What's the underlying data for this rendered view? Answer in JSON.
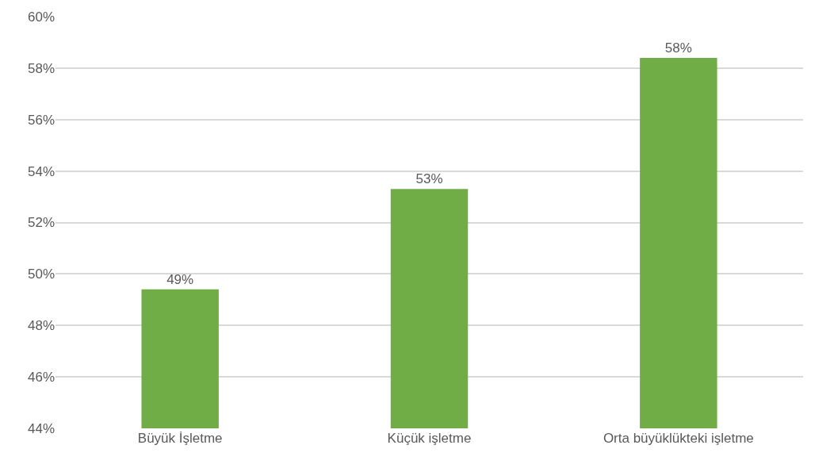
{
  "chart_data": {
    "type": "bar",
    "categories": [
      "Büyük İşletme",
      "Küçük işletme",
      "Orta büyüklükteki işletme"
    ],
    "values": [
      49.4,
      53.3,
      58.4
    ],
    "value_labels": [
      "49%",
      "53%",
      "58%"
    ],
    "color": "#70ad47",
    "ylim": [
      44,
      60
    ],
    "yticks": [
      {
        "value": 44,
        "label": "44%"
      },
      {
        "value": 46,
        "label": "46%"
      },
      {
        "value": 48,
        "label": "48%"
      },
      {
        "value": 50,
        "label": "50%"
      },
      {
        "value": 52,
        "label": "52%"
      },
      {
        "value": 54,
        "label": "54%"
      },
      {
        "value": 56,
        "label": "56%"
      },
      {
        "value": 58,
        "label": "58%"
      },
      {
        "value": 60,
        "label": "60%"
      }
    ],
    "grid": "y"
  }
}
